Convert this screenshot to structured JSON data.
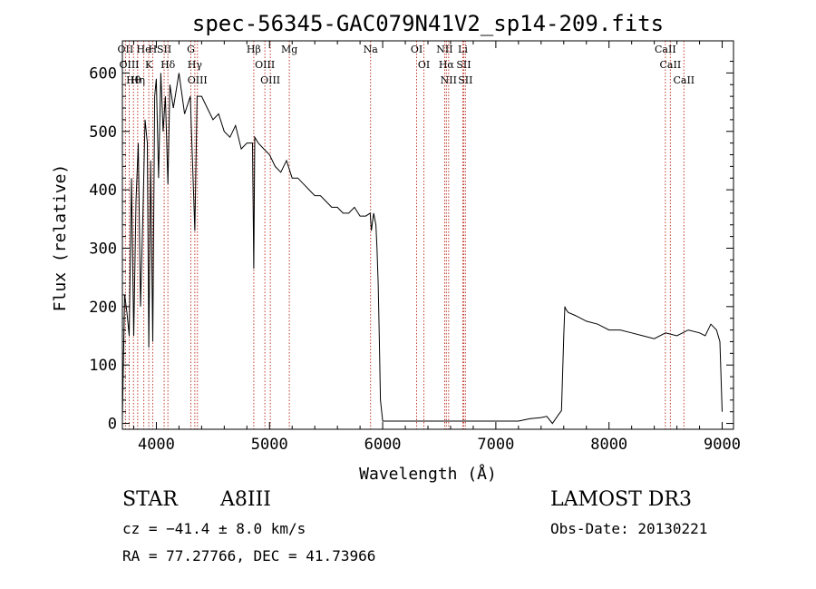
{
  "chart_data": {
    "type": "line",
    "title": "spec-56345-GAC079N41V2_sp14-209.fits",
    "xlabel": "Wavelength (Å)",
    "ylabel": "Flux (relative)",
    "xlim": [
      3700,
      9100
    ],
    "ylim": [
      -10,
      655
    ],
    "x_ticks": [
      4000,
      5000,
      6000,
      7000,
      8000,
      9000
    ],
    "y_ticks": [
      0,
      100,
      200,
      300,
      400,
      500,
      600
    ],
    "grid": false,
    "series": [
      {
        "name": "flux",
        "x": [
          3700,
          3720,
          3740,
          3760,
          3780,
          3800,
          3820,
          3840,
          3860,
          3880,
          3900,
          3920,
          3933,
          3950,
          3968,
          3985,
          4000,
          4020,
          4040,
          4060,
          4080,
          4102,
          4120,
          4150,
          4200,
          4250,
          4300,
          4340,
          4360,
          4400,
          4450,
          4500,
          4550,
          4600,
          4650,
          4700,
          4750,
          4800,
          4850,
          4861,
          4870,
          4900,
          4950,
          5000,
          5050,
          5100,
          5150,
          5200,
          5250,
          5300,
          5350,
          5400,
          5450,
          5500,
          5550,
          5600,
          5650,
          5700,
          5750,
          5800,
          5850,
          5890,
          5900,
          5920,
          5940,
          5950,
          5960,
          5970,
          5980,
          6000,
          6500,
          7000,
          7100,
          7200,
          7300,
          7400,
          7450,
          7500,
          7550,
          7580,
          7600,
          7610,
          7620,
          7640,
          7700,
          7800,
          7900,
          8000,
          8100,
          8200,
          8300,
          8400,
          8500,
          8600,
          8700,
          8800,
          8850,
          8900,
          8950,
          8980,
          9000
        ],
        "y": [
          10,
          220,
          190,
          150,
          420,
          150,
          380,
          480,
          200,
          350,
          520,
          480,
          130,
          450,
          140,
          560,
          590,
          420,
          600,
          500,
          560,
          410,
          580,
          540,
          600,
          530,
          560,
          330,
          560,
          560,
          540,
          520,
          530,
          500,
          490,
          510,
          470,
          480,
          480,
          265,
          490,
          480,
          470,
          460,
          440,
          430,
          450,
          420,
          420,
          410,
          400,
          390,
          390,
          380,
          370,
          370,
          360,
          360,
          370,
          355,
          355,
          360,
          330,
          360,
          340,
          300,
          240,
          150,
          40,
          4,
          4,
          4,
          4,
          4,
          8,
          10,
          12,
          0,
          14,
          22,
          150,
          200,
          195,
          190,
          185,
          175,
          170,
          160,
          160,
          155,
          150,
          145,
          155,
          150,
          160,
          155,
          150,
          170,
          160,
          140,
          20
        ]
      }
    ],
    "lines": [
      {
        "label": "Hθ",
        "x": 3798
      },
      {
        "label": "OII",
        "x": 3727
      },
      {
        "label": "OIII",
        "x": 3760
      },
      {
        "label": "Hη",
        "x": 3835
      },
      {
        "label": "He",
        "x": 3889
      },
      {
        "label": "K",
        "x": 3933
      },
      {
        "label": "H",
        "x": 3968
      },
      {
        "label": "SII",
        "x": 4069
      },
      {
        "label": "Hδ",
        "x": 4102
      },
      {
        "label": "OIII",
        "x": 4363
      },
      {
        "label": "Hγ",
        "x": 4340
      },
      {
        "label": "G",
        "x": 4305
      },
      {
        "label": "Hβ",
        "x": 4861
      },
      {
        "label": "OIII",
        "x": 4959
      },
      {
        "label": "OIII",
        "x": 5007
      },
      {
        "label": "Mg",
        "x": 5175
      },
      {
        "label": "Na",
        "x": 5893
      },
      {
        "label": "OI",
        "x": 6300
      },
      {
        "label": "OI",
        "x": 6364
      },
      {
        "label": "Hα",
        "x": 6563
      },
      {
        "label": "NII",
        "x": 6548
      },
      {
        "label": "NII",
        "x": 6583
      },
      {
        "label": "SII",
        "x": 6716
      },
      {
        "label": "Li",
        "x": 6708
      },
      {
        "label": "SII",
        "x": 6731
      },
      {
        "label": "CaII",
        "x": 8498
      },
      {
        "label": "CaII",
        "x": 8542
      },
      {
        "label": "CaII",
        "x": 8662
      }
    ]
  },
  "info": {
    "object_type": "STAR",
    "subclass": "A8III",
    "survey": "LAMOST DR3",
    "cz": "cz = −41.4 ± 8.0 km/s",
    "obs_date": "Obs-Date: 20130221",
    "coords": "RA =  77.27766, DEC =  41.73966"
  },
  "colors": {
    "spectrum": "#000000",
    "line_markers": "#c0392b",
    "axes": "#000000"
  }
}
